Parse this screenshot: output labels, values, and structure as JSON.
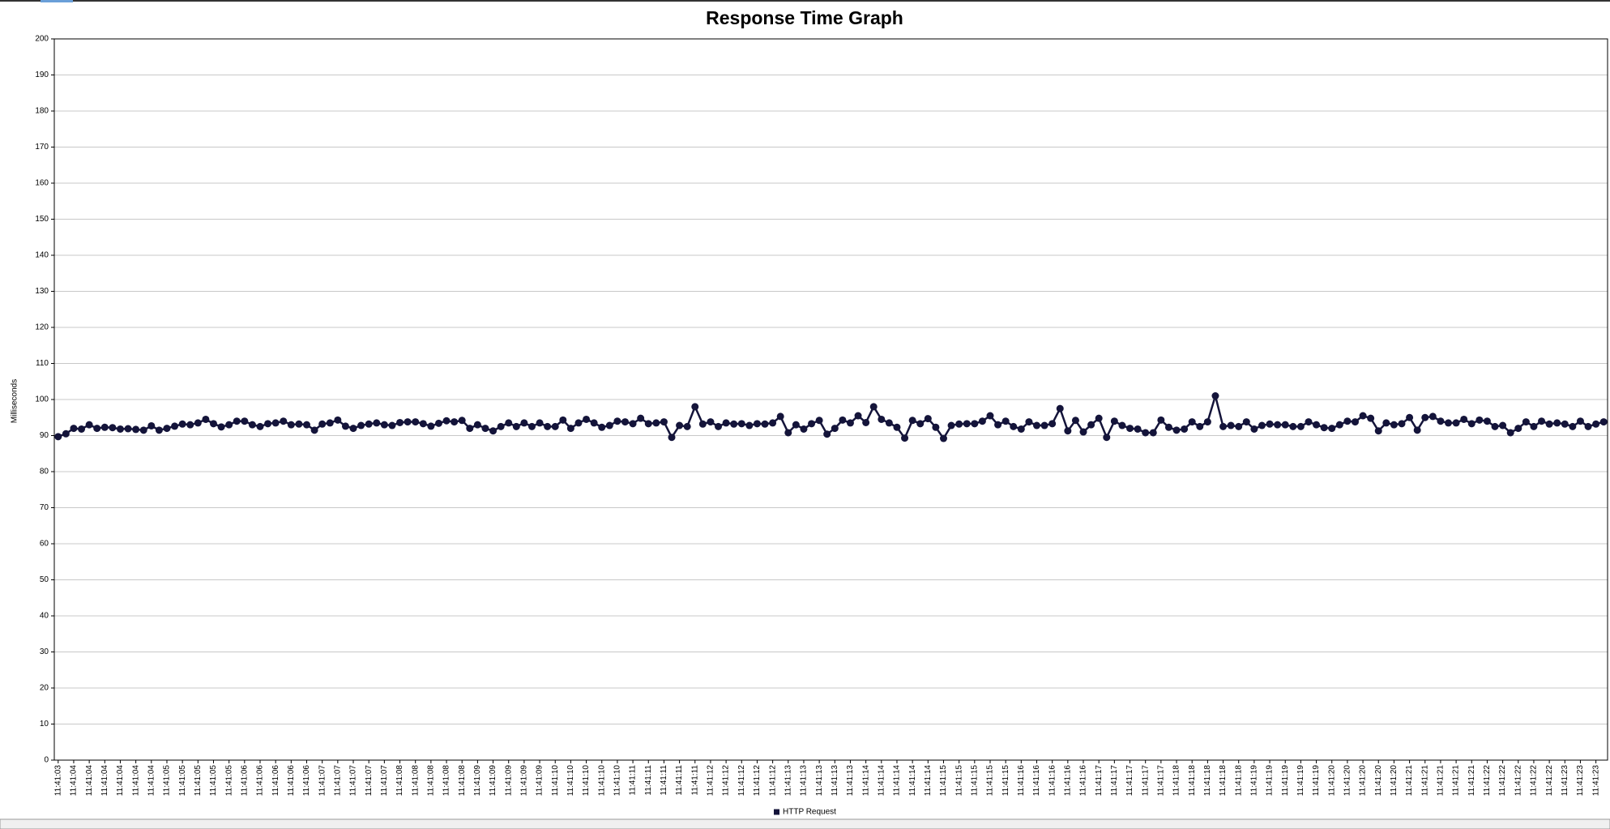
{
  "chart_data": {
    "type": "line",
    "title": "Response Time Graph",
    "y_label": "Milliseconds",
    "categories": [
      "11:41:03",
      null,
      "11:41:04",
      null,
      "11:41:04",
      null,
      "11:41:04",
      null,
      "11:41:04",
      null,
      "11:41:04",
      null,
      "11:41:04",
      null,
      "11:41:05",
      null,
      "11:41:05",
      null,
      "11:41:05",
      null,
      "11:41:05",
      null,
      "11:41:05",
      null,
      "11:41:06",
      null,
      "11:41:06",
      null,
      "11:41:06",
      null,
      "11:41:06",
      null,
      "11:41:06",
      null,
      "11:41:07",
      null,
      "11:41:07",
      null,
      "11:41:07",
      null,
      "11:41:07",
      null,
      "11:41:07",
      null,
      "11:41:08",
      null,
      "11:41:08",
      null,
      "11:41:08",
      null,
      "11:41:08",
      null,
      "11:41:08",
      null,
      "11:41:09",
      null,
      "11:41:09",
      null,
      "11:41:09",
      null,
      "11:41:09",
      null,
      "11:41:09",
      null,
      "11:41:10",
      null,
      "11:41:10",
      null,
      "11:41:10",
      null,
      "11:41:10",
      null,
      "11:41:10",
      null,
      "11:41:11",
      null,
      "11:41:11",
      null,
      "11:41:11",
      null,
      "11:41:11",
      null,
      "11:41:11",
      null,
      "11:41:12",
      null,
      "11:41:12",
      null,
      "11:41:12",
      null,
      "11:41:12",
      null,
      "11:41:12",
      null,
      "11:41:13",
      null,
      "11:41:13",
      null,
      "11:41:13",
      null,
      "11:41:13",
      null,
      "11:41:13",
      null,
      "11:41:14",
      null,
      "11:41:14",
      null,
      "11:41:14",
      null,
      "11:41:14",
      null,
      "11:41:14",
      null,
      "11:41:15",
      null,
      "11:41:15",
      null,
      "11:41:15",
      null,
      "11:41:15",
      null,
      "11:41:15",
      null,
      "11:41:16",
      null,
      "11:41:16",
      null,
      "11:41:16",
      null,
      "11:41:16",
      null,
      "11:41:16",
      null,
      "11:41:17",
      null,
      "11:41:17",
      null,
      "11:41:17",
      null,
      "11:41:17",
      null,
      "11:41:17",
      null,
      "11:41:18",
      null,
      "11:41:18",
      null,
      "11:41:18",
      null,
      "11:41:18",
      null,
      "11:41:18",
      null,
      "11:41:19",
      null,
      "11:41:19",
      null,
      "11:41:19",
      null,
      "11:41:19",
      null,
      "11:41:19",
      null,
      "11:41:20",
      null,
      "11:41:20",
      null,
      "11:41:20",
      null,
      "11:41:20",
      null,
      "11:41:20",
      null,
      "11:41:21",
      null,
      "11:41:21",
      null,
      "11:41:21",
      null,
      "11:41:21",
      null,
      "11:41:21",
      null,
      "11:41:22",
      null,
      "11:41:22",
      null,
      "11:41:22",
      null,
      "11:41:22",
      null,
      "11:41:22",
      null,
      "11:41:23",
      null,
      "11:41:23",
      null,
      "11:41:23",
      null
    ],
    "series": [
      {
        "name": "HTTP Request",
        "color": "#14143a",
        "values": [
          89.7,
          90.5,
          92,
          91.8,
          93,
          92,
          92.3,
          92.2,
          91.8,
          91.9,
          91.7,
          91.5,
          92.7,
          91.5,
          92,
          92.6,
          93.2,
          93,
          93.5,
          94.5,
          93.3,
          92.4,
          93,
          94,
          94,
          93,
          92.5,
          93.3,
          93.5,
          94,
          93,
          93.2,
          93,
          91.5,
          93.2,
          93.5,
          94.3,
          92.6,
          92,
          92.8,
          93.2,
          93.5,
          93,
          92.8,
          93.6,
          93.8,
          93.8,
          93.3,
          92.6,
          93.4,
          94.1,
          93.8,
          94.2,
          92,
          93,
          92,
          91.3,
          92.5,
          93.5,
          92.5,
          93.5,
          92.5,
          93.5,
          92.5,
          92.5,
          94.3,
          92,
          93.5,
          94.5,
          93.5,
          92.3,
          92.8,
          94,
          93.8,
          93.3,
          94.8,
          93.3,
          93.5,
          93.8,
          89.5,
          92.8,
          92.5,
          98,
          93.2,
          93.8,
          92.5,
          93.5,
          93.2,
          93.3,
          92.8,
          93.3,
          93.2,
          93.5,
          95.3,
          90.8,
          93,
          91.8,
          93.3,
          94.2,
          90.4,
          92,
          94.3,
          93.5,
          95.5,
          93.6,
          98,
          94.5,
          93.5,
          92.3,
          89.3,
          94.2,
          93.3,
          94.7,
          92.3,
          89.2,
          92.8,
          93.2,
          93.3,
          93.3,
          94,
          95.5,
          93,
          94,
          92.5,
          91.8,
          93.8,
          92.8,
          92.8,
          93.3,
          97.5,
          91.3,
          94.2,
          91,
          93,
          94.8,
          89.5,
          94,
          92.8,
          92,
          91.8,
          90.8,
          90.8,
          94.3,
          92.3,
          91.5,
          91.8,
          93.8,
          92.5,
          93.8,
          101,
          92.5,
          92.8,
          92.5,
          93.8,
          91.8,
          92.8,
          93.2,
          93,
          93,
          92.5,
          92.5,
          93.8,
          93,
          92.2,
          92,
          93,
          94,
          93.8,
          95.5,
          94.8,
          91.3,
          93.5,
          93,
          93.3,
          95,
          91.5,
          95,
          95.3,
          94,
          93.5,
          93.5,
          94.5,
          93.3,
          94.3,
          94,
          92.5,
          92.8,
          90.8,
          92,
          93.8,
          92.5,
          94,
          93.2,
          93.5,
          93.2,
          92.5,
          94,
          92.5,
          93.2,
          93.8
        ]
      }
    ],
    "ylim": [
      0,
      200
    ],
    "yticks": [
      0,
      10,
      20,
      30,
      40,
      50,
      60,
      70,
      80,
      90,
      100,
      110,
      120,
      130,
      140,
      150,
      160,
      170,
      180,
      190,
      200
    ],
    "grid": true,
    "legend": "bottom"
  }
}
